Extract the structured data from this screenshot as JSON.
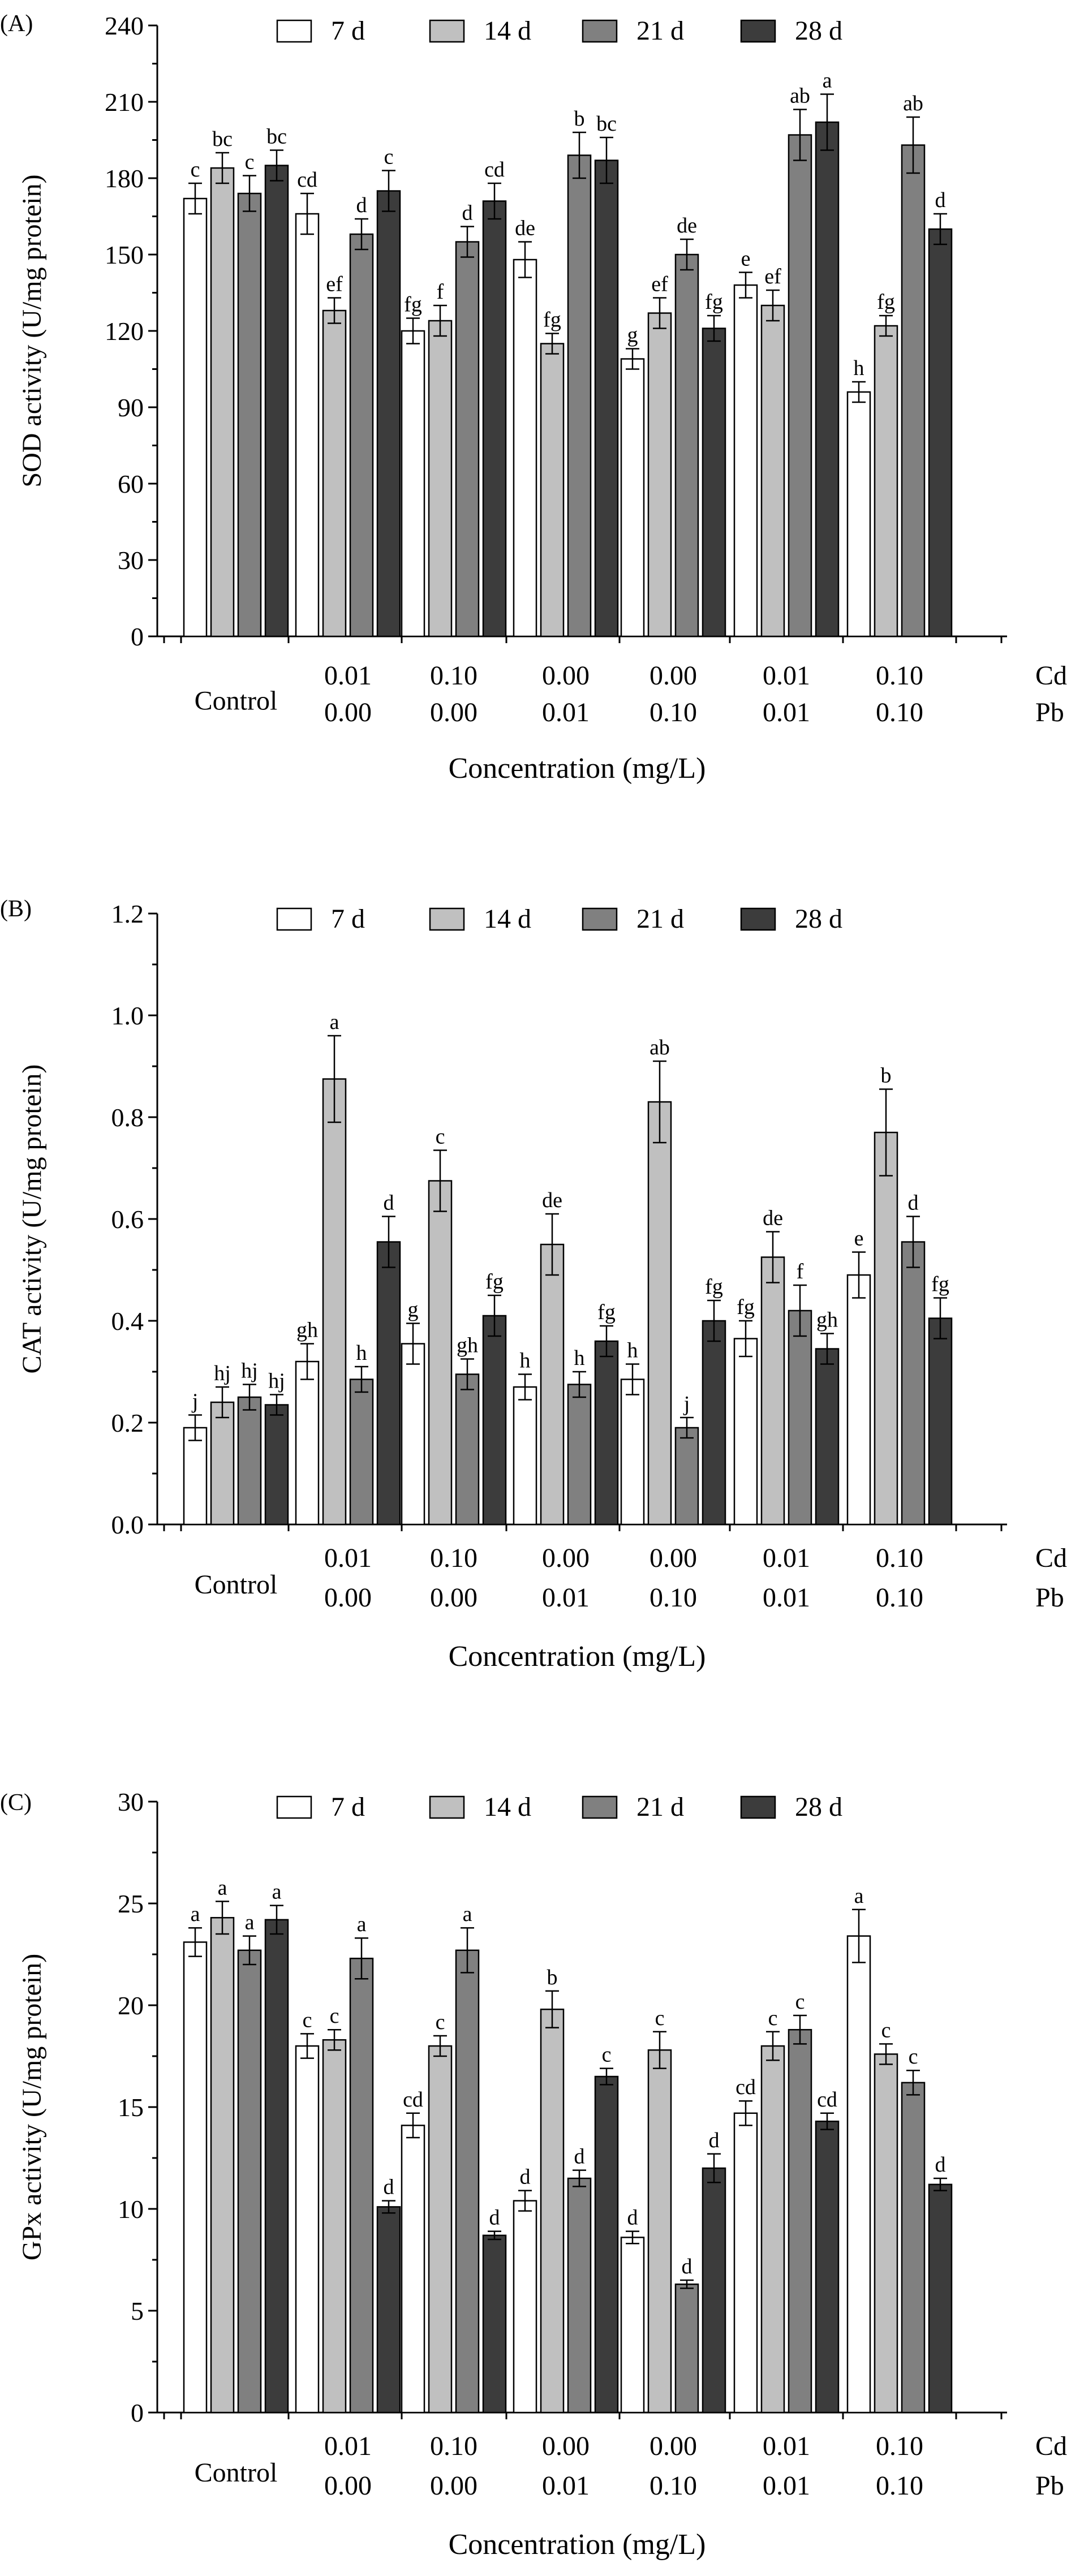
{
  "figure": {
    "group_labels": [
      "Control",
      "0.01",
      "0.10",
      "0.00",
      "0.00",
      "0.01",
      "0.10"
    ],
    "group_sublabels": [
      "",
      "0.00",
      "0.00",
      "0.01",
      "0.10",
      "0.01",
      "0.10"
    ],
    "row_labels": [
      "Cd",
      "Pb"
    ],
    "xlabel": "Concentration (mg/L)",
    "legend": [
      "7 d",
      "14 d",
      "21 d",
      "28 d"
    ],
    "colors": [
      "#ffffff",
      "#c0c0c0",
      "#808080",
      "#3c3c3c"
    ]
  },
  "chart_data": [
    {
      "type": "bar",
      "panel": "(A)",
      "ylabel": "SOD activity (U/mg protein)",
      "ylim": [
        0,
        240
      ],
      "yticks": [
        0,
        30,
        60,
        90,
        120,
        150,
        180,
        210,
        240
      ],
      "categories": [
        "Control",
        "0.01/0.00",
        "0.10/0.00",
        "0.00/0.01",
        "0.00/0.10",
        "0.01/0.01",
        "0.10/0.10"
      ],
      "series": [
        {
          "name": "7 d",
          "values": [
            172,
            166,
            120,
            148,
            109,
            138,
            96
          ],
          "errors": [
            6,
            8,
            5,
            7,
            4,
            5,
            4
          ],
          "letters": [
            "c",
            "cd",
            "fg",
            "de",
            "g",
            "e",
            "h"
          ]
        },
        {
          "name": "14 d",
          "values": [
            184,
            128,
            124,
            115,
            127,
            130,
            122
          ],
          "errors": [
            6,
            5,
            6,
            4,
            6,
            6,
            4
          ],
          "letters": [
            "bc",
            "ef",
            "f",
            "fg",
            "ef",
            "ef",
            "fg"
          ]
        },
        {
          "name": "21 d",
          "values": [
            174,
            158,
            155,
            189,
            150,
            197,
            193
          ],
          "errors": [
            7,
            6,
            6,
            9,
            6,
            10,
            11
          ],
          "letters": [
            "c",
            "d",
            "d",
            "b",
            "de",
            "ab",
            "ab"
          ]
        },
        {
          "name": "28 d",
          "values": [
            185,
            175,
            171,
            187,
            121,
            202,
            160
          ],
          "errors": [
            6,
            8,
            7,
            9,
            5,
            11,
            6
          ],
          "letters": [
            "bc",
            "c",
            "cd",
            "bc",
            "fg",
            "a",
            "d"
          ]
        }
      ]
    },
    {
      "type": "bar",
      "panel": "(B)",
      "ylabel": "CAT activity (U/mg protein)",
      "ylim": [
        0,
        1.2
      ],
      "yticks": [
        "0.0",
        "0.2",
        "0.4",
        "0.6",
        "0.8",
        "1.0",
        "1.2"
      ],
      "categories": [
        "Control",
        "0.01/0.00",
        "0.10/0.00",
        "0.00/0.01",
        "0.00/0.10",
        "0.01/0.01",
        "0.10/0.10"
      ],
      "series": [
        {
          "name": "7 d",
          "values": [
            0.19,
            0.32,
            0.355,
            0.27,
            0.285,
            0.365,
            0.49
          ],
          "errors": [
            0.025,
            0.035,
            0.04,
            0.025,
            0.03,
            0.035,
            0.045
          ],
          "letters": [
            "j",
            "gh",
            "g",
            "h",
            "h",
            "fg",
            "e"
          ]
        },
        {
          "name": "14 d",
          "values": [
            0.24,
            0.875,
            0.675,
            0.55,
            0.83,
            0.525,
            0.77
          ],
          "errors": [
            0.03,
            0.085,
            0.06,
            0.06,
            0.08,
            0.05,
            0.085
          ],
          "letters": [
            "hj",
            "a",
            "c",
            "de",
            "ab",
            "de",
            "b"
          ]
        },
        {
          "name": "21 d",
          "values": [
            0.25,
            0.285,
            0.295,
            0.275,
            0.19,
            0.42,
            0.555
          ],
          "errors": [
            0.025,
            0.025,
            0.03,
            0.025,
            0.02,
            0.05,
            0.05
          ],
          "letters": [
            "hj",
            "h",
            "gh",
            "h",
            "j",
            "f",
            "d"
          ]
        },
        {
          "name": "28 d",
          "values": [
            0.235,
            0.555,
            0.41,
            0.36,
            0.4,
            0.345,
            0.405
          ],
          "errors": [
            0.02,
            0.05,
            0.04,
            0.03,
            0.04,
            0.03,
            0.04
          ],
          "letters": [
            "hj",
            "d",
            "fg",
            "fg",
            "fg",
            "gh",
            "fg"
          ]
        }
      ]
    },
    {
      "type": "bar",
      "panel": "(C)",
      "ylabel": "GPx activity (U/mg protein)",
      "ylim": [
        0,
        30
      ],
      "yticks": [
        0,
        5,
        10,
        15,
        20,
        25,
        30
      ],
      "categories": [
        "Control",
        "0.01/0.00",
        "0.10/0.00",
        "0.00/0.01",
        "0.00/0.10",
        "0.01/0.01",
        "0.10/0.10"
      ],
      "series": [
        {
          "name": "7 d",
          "values": [
            23.1,
            18.0,
            14.1,
            10.4,
            8.6,
            14.7,
            23.4
          ],
          "errors": [
            0.7,
            0.6,
            0.6,
            0.5,
            0.3,
            0.6,
            1.3
          ],
          "letters": [
            "a",
            "c",
            "cd",
            "d",
            "d",
            "cd",
            "a"
          ]
        },
        {
          "name": "14 d",
          "values": [
            24.3,
            18.3,
            18.0,
            19.8,
            17.8,
            18.0,
            17.6
          ],
          "errors": [
            0.8,
            0.5,
            0.5,
            0.9,
            0.9,
            0.7,
            0.5
          ],
          "letters": [
            "a",
            "c",
            "c",
            "b",
            "c",
            "c",
            "c"
          ]
        },
        {
          "name": "21 d",
          "values": [
            22.7,
            22.3,
            22.7,
            11.5,
            6.3,
            18.8,
            16.2
          ],
          "errors": [
            0.7,
            1.0,
            1.1,
            0.4,
            0.2,
            0.7,
            0.6
          ],
          "letters": [
            "a",
            "a",
            "a",
            "d",
            "d",
            "c",
            "c"
          ]
        },
        {
          "name": "28 d",
          "values": [
            24.2,
            10.1,
            8.7,
            16.5,
            12.0,
            14.3,
            11.2
          ],
          "errors": [
            0.7,
            0.3,
            0.2,
            0.4,
            0.7,
            0.4,
            0.3
          ],
          "letters": [
            "a",
            "d",
            "d",
            "c",
            "d",
            "cd",
            "d"
          ]
        }
      ]
    }
  ]
}
